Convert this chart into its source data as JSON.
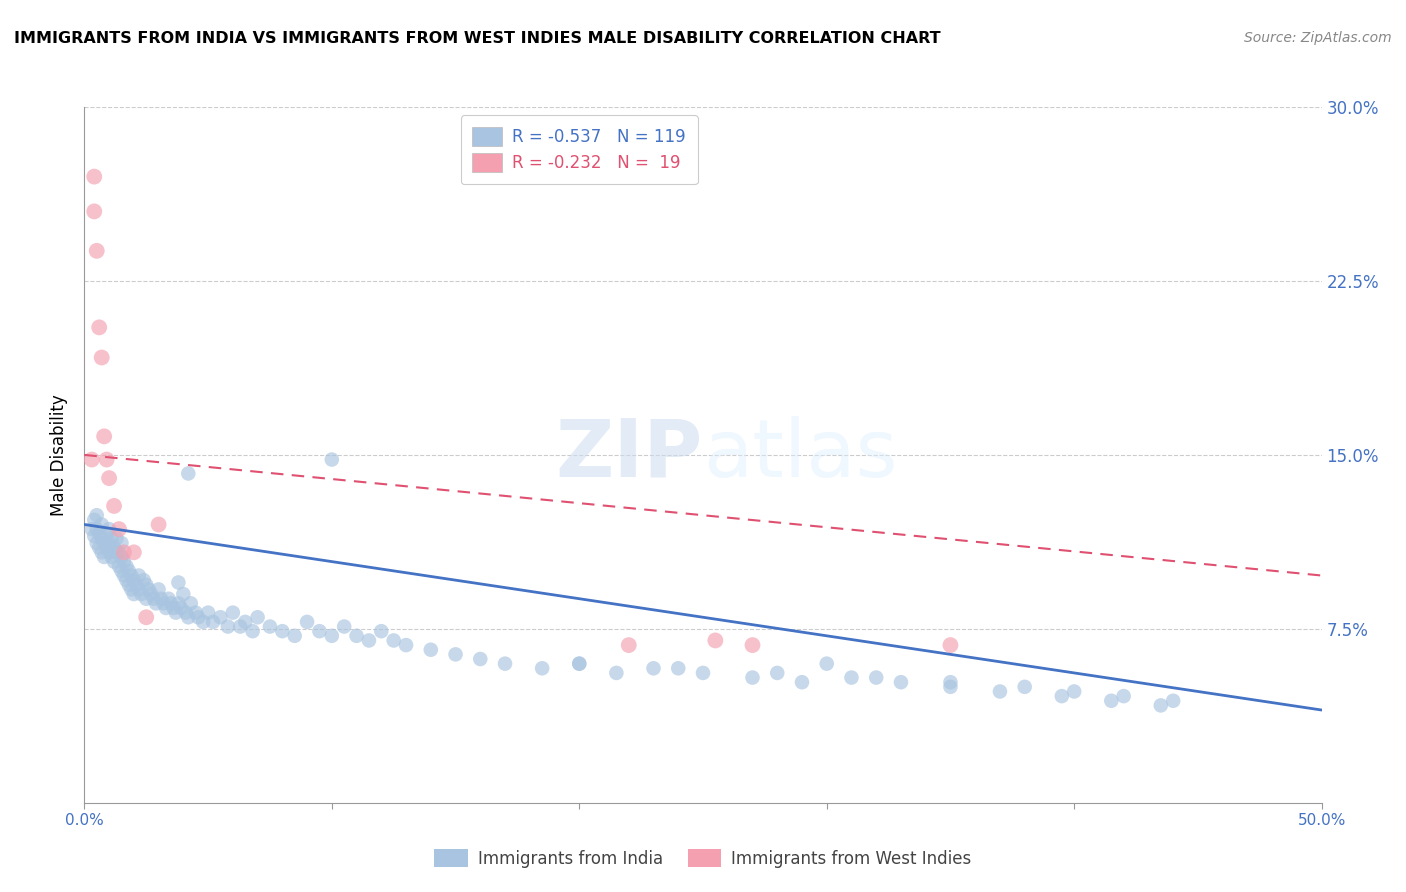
{
  "title": "IMMIGRANTS FROM INDIA VS IMMIGRANTS FROM WEST INDIES MALE DISABILITY CORRELATION CHART",
  "source": "Source: ZipAtlas.com",
  "ylabel": "Male Disability",
  "watermark": "ZIPatlas",
  "xlim": [
    0.0,
    0.5
  ],
  "ylim": [
    0.0,
    0.3
  ],
  "yticks_right": [
    0.075,
    0.15,
    0.225,
    0.3
  ],
  "yticklabels_right": [
    "7.5%",
    "15.0%",
    "22.5%",
    "30.0%"
  ],
  "india_R": -0.537,
  "india_N": 119,
  "westindies_R": -0.232,
  "westindies_N": 19,
  "india_color": "#a8c4e0",
  "india_line_color": "#4472c4",
  "westindies_color": "#f4a0b0",
  "westindies_line_color": "#e05070",
  "india_scatter_x": [
    0.003,
    0.004,
    0.004,
    0.005,
    0.005,
    0.005,
    0.006,
    0.006,
    0.007,
    0.007,
    0.007,
    0.008,
    0.008,
    0.009,
    0.009,
    0.01,
    0.01,
    0.01,
    0.011,
    0.011,
    0.012,
    0.012,
    0.013,
    0.013,
    0.014,
    0.014,
    0.015,
    0.015,
    0.015,
    0.016,
    0.016,
    0.017,
    0.017,
    0.018,
    0.018,
    0.019,
    0.019,
    0.02,
    0.02,
    0.021,
    0.022,
    0.022,
    0.023,
    0.024,
    0.025,
    0.025,
    0.026,
    0.027,
    0.028,
    0.029,
    0.03,
    0.031,
    0.032,
    0.033,
    0.034,
    0.035,
    0.036,
    0.037,
    0.038,
    0.039,
    0.04,
    0.041,
    0.042,
    0.043,
    0.045,
    0.046,
    0.048,
    0.05,
    0.052,
    0.055,
    0.058,
    0.06,
    0.063,
    0.065,
    0.068,
    0.07,
    0.075,
    0.08,
    0.085,
    0.09,
    0.095,
    0.1,
    0.105,
    0.11,
    0.115,
    0.12,
    0.125,
    0.13,
    0.14,
    0.15,
    0.16,
    0.17,
    0.185,
    0.2,
    0.215,
    0.23,
    0.25,
    0.27,
    0.29,
    0.31,
    0.33,
    0.35,
    0.37,
    0.395,
    0.415,
    0.435,
    0.038,
    0.042,
    0.1,
    0.2,
    0.24,
    0.28,
    0.3,
    0.32,
    0.35,
    0.38,
    0.4,
    0.42,
    0.44
  ],
  "india_scatter_y": [
    0.118,
    0.115,
    0.122,
    0.112,
    0.118,
    0.124,
    0.11,
    0.116,
    0.114,
    0.108,
    0.12,
    0.106,
    0.112,
    0.11,
    0.116,
    0.108,
    0.112,
    0.118,
    0.106,
    0.114,
    0.104,
    0.11,
    0.108,
    0.114,
    0.102,
    0.108,
    0.1,
    0.106,
    0.112,
    0.098,
    0.104,
    0.096,
    0.102,
    0.094,
    0.1,
    0.092,
    0.098,
    0.09,
    0.096,
    0.094,
    0.092,
    0.098,
    0.09,
    0.096,
    0.088,
    0.094,
    0.092,
    0.09,
    0.088,
    0.086,
    0.092,
    0.088,
    0.086,
    0.084,
    0.088,
    0.086,
    0.084,
    0.082,
    0.086,
    0.084,
    0.09,
    0.082,
    0.08,
    0.086,
    0.082,
    0.08,
    0.078,
    0.082,
    0.078,
    0.08,
    0.076,
    0.082,
    0.076,
    0.078,
    0.074,
    0.08,
    0.076,
    0.074,
    0.072,
    0.078,
    0.074,
    0.072,
    0.076,
    0.072,
    0.07,
    0.074,
    0.07,
    0.068,
    0.066,
    0.064,
    0.062,
    0.06,
    0.058,
    0.06,
    0.056,
    0.058,
    0.056,
    0.054,
    0.052,
    0.054,
    0.052,
    0.05,
    0.048,
    0.046,
    0.044,
    0.042,
    0.095,
    0.142,
    0.148,
    0.06,
    0.058,
    0.056,
    0.06,
    0.054,
    0.052,
    0.05,
    0.048,
    0.046,
    0.044
  ],
  "westindies_scatter_x": [
    0.003,
    0.004,
    0.004,
    0.005,
    0.006,
    0.007,
    0.008,
    0.009,
    0.01,
    0.012,
    0.014,
    0.016,
    0.02,
    0.025,
    0.03,
    0.22,
    0.255,
    0.27,
    0.35
  ],
  "westindies_scatter_y": [
    0.148,
    0.255,
    0.27,
    0.238,
    0.205,
    0.192,
    0.158,
    0.148,
    0.14,
    0.128,
    0.118,
    0.108,
    0.108,
    0.08,
    0.12,
    0.068,
    0.07,
    0.068,
    0.068
  ],
  "india_trend_x": [
    0.0,
    0.5
  ],
  "india_trend_y": [
    0.12,
    0.04
  ],
  "westindies_trend_x": [
    0.0,
    0.5
  ],
  "westindies_trend_y": [
    0.15,
    0.098
  ],
  "legend_india_label": "Immigrants from India",
  "legend_westindies_label": "Immigrants from West Indies",
  "axis_color": "#4472c4",
  "grid_color": "#cccccc"
}
